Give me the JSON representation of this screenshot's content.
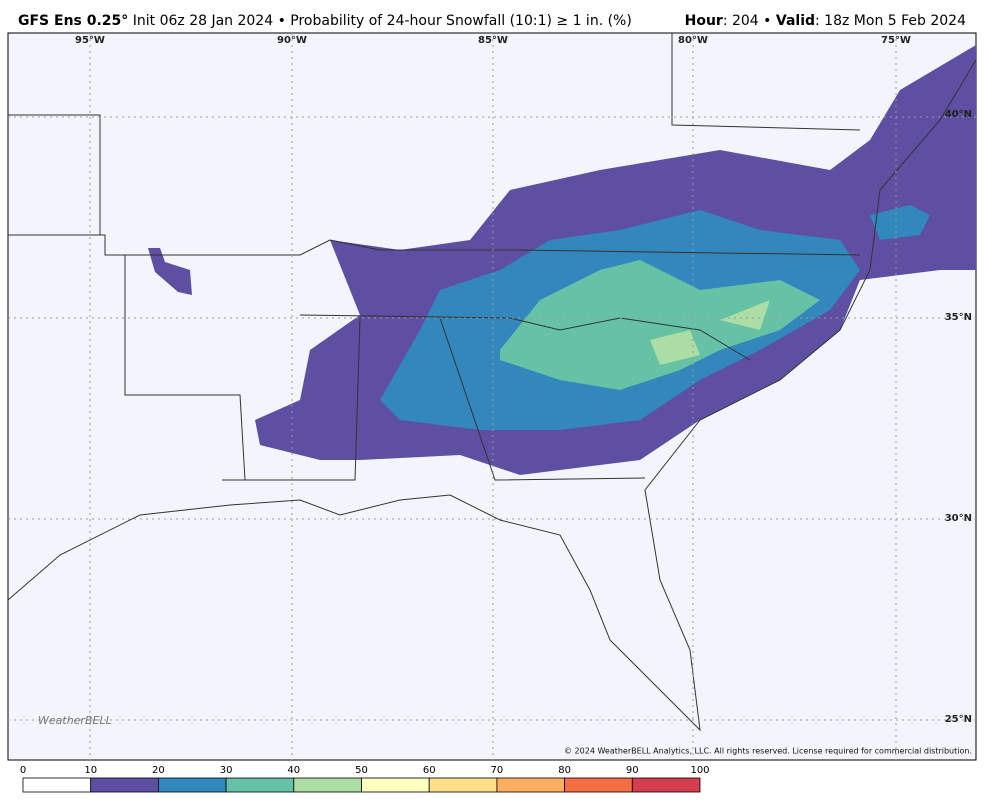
{
  "header": {
    "model": "GFS Ens 0.25°",
    "description": "Init 06z 28 Jan 2024 • Probability of 24-hour Snowfall (10:1) ≥ 1 in. (%)",
    "hour_label": "Hour",
    "hour_value": ": 204 • ",
    "valid_label": "Valid",
    "valid_value": ": 18z Mon 5 Feb 2024"
  },
  "map": {
    "longitudes": [
      "95°W",
      "90°W",
      "85°W",
      "80°W",
      "75°W"
    ],
    "latitudes": [
      "40°N",
      "35°N",
      "30°N",
      "25°N"
    ],
    "logo": "WeatherBELL",
    "copyright": "© 2024 WeatherBELL Analytics, LLC. All rights reserved. License required for commercial distribution."
  },
  "colorbar": {
    "ticks": [
      0,
      10,
      20,
      30,
      40,
      50,
      60,
      70,
      80,
      90,
      100
    ],
    "colors": [
      "#ffffff",
      "#5e4fa2",
      "#3288bd",
      "#66c2a5",
      "#abdda4",
      "#ffffbf",
      "#fee08b",
      "#fdae61",
      "#f46d43",
      "#d53e4f",
      "#9e0142"
    ]
  }
}
